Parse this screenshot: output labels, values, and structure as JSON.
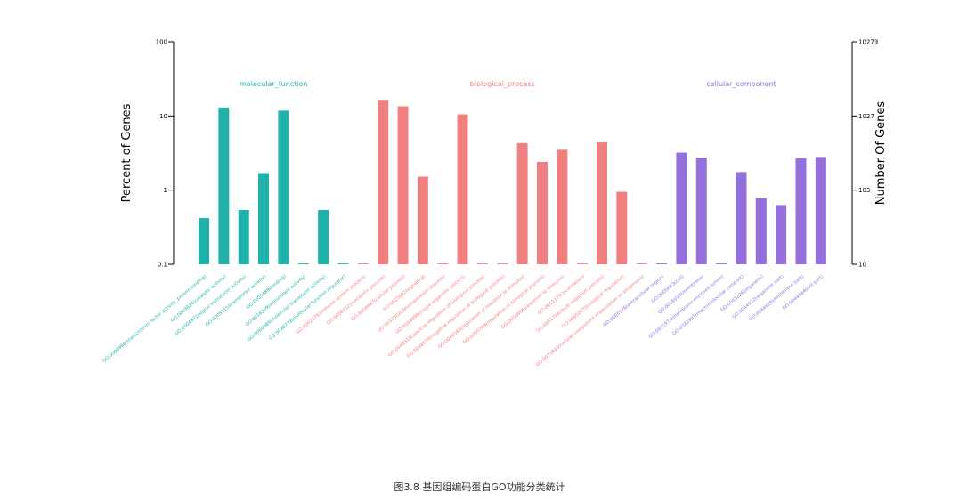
{
  "caption": "图3.8 基因组编码蛋白GO功能分类统计",
  "chart_data": {
    "type": "bar",
    "ylabel_left": "Percent of Genes",
    "ylabel_right": "Number Of Genes",
    "y_scale": "log",
    "ylim": [
      0.1,
      100
    ],
    "yticks_left": [
      "0.1",
      "1",
      "10",
      "100"
    ],
    "yticks_right": [
      "10",
      "103",
      "1027",
      "10273"
    ],
    "grid": false,
    "groups": [
      {
        "name": "molecular_function",
        "color": "#20b2aa",
        "categories": [
          "GO:0000988(transcription factor activity, protein binding)",
          "GO:0003824(catalytic activity)",
          "GO:0004871(signal transducer activity)",
          "GO:0005215(transporter activity)",
          "GO:0005488(binding)",
          "GO:0016209(antioxidant activity)",
          "GO:0060089(molecular transducer activity)",
          "GO:0098772(molecular function regulator)"
        ],
        "values": [
          0.42,
          13.0,
          0.54,
          1.7,
          11.8,
          0.1,
          0.54,
          0.1
        ]
      },
      {
        "name": "biological_process",
        "color": "#f08080",
        "categories": [
          "GO:0002376(immune system process)",
          "GO:0008152(metabolic process)",
          "GO:0009987(cellular process)",
          "GO:0023052(signaling)",
          "GO:0032502(developmental process)",
          "GO:0044699(single-organism process)",
          "GO:0048518(positive regulation of biological process)",
          "GO:0048519(negative regulation of biological process)",
          "GO:0048583(regulation of response to stimulus)",
          "GO:0050789(regulation of biological process)",
          "GO:0050896(response to stimulus)",
          "GO:0051179(localization)",
          "GO:0051704(multi-organism process)",
          "GO:0065007(biological regulation)",
          "GO:0071840(cellular component organization or biogenesis)"
        ],
        "values": [
          0.1,
          16.5,
          13.5,
          1.52,
          0.1,
          10.5,
          0.1,
          0.1,
          4.3,
          2.4,
          3.5,
          0.1,
          4.4,
          0.95,
          0.1
        ]
      },
      {
        "name": "cellular_component",
        "color": "#9370db",
        "categories": [
          "GO:0005576(extracellular region)",
          "GO:0005623(cell)",
          "GO:0016020(membrane)",
          "GO:0031974(membrane-enclosed lumen)",
          "GO:0032991(macromolecular complex)",
          "GO:0043226(organelle)",
          "GO:0044422(organelle part)",
          "GO:0044425(membrane part)",
          "GO:0044464(cell part)"
        ],
        "values": [
          0.1,
          3.2,
          2.75,
          0.1,
          1.75,
          0.78,
          0.63,
          2.7,
          2.8
        ]
      }
    ]
  }
}
